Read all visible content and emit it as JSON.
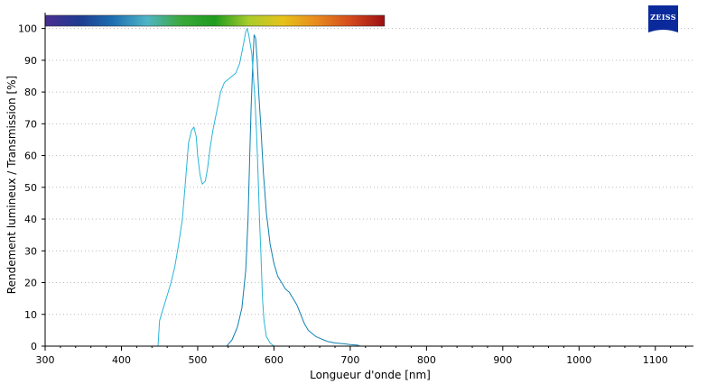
{
  "logo": {
    "text": "ZEISS",
    "color": "#0a2a9c"
  },
  "colors": {
    "series_primary": "#0f7fb2",
    "series_secondary": "#2ab5d8",
    "grid": "#b8b8b8",
    "axis": "#000000",
    "spectrum_stops": [
      "#4a2f91",
      "#1f3b8f",
      "#1c6fb0",
      "#4fb5c7",
      "#3aa83a",
      "#1e9c1e",
      "#a9cc2b",
      "#e6c21a",
      "#e88a1e",
      "#d44a1c",
      "#9c0f12"
    ]
  },
  "chart_data": {
    "type": "line",
    "xlabel": "Longueur d'onde [nm]",
    "ylabel": "Rendement lumineux / Transmission [%]",
    "xlim": [
      300,
      1150
    ],
    "ylim": [
      0,
      105
    ],
    "xticks": [
      "300",
      "400",
      "500",
      "600",
      "700",
      "800",
      "900",
      "1000",
      "1100"
    ],
    "yticks": [
      "0",
      "10",
      "20",
      "30",
      "40",
      "50",
      "60",
      "70",
      "80",
      "90",
      "100"
    ],
    "grid": "horizontal-dotted",
    "spectrum_bar_range": [
      300,
      745
    ],
    "series": [
      {
        "color": "#0f7fb2",
        "x": [
          538,
          545,
          552,
          558,
          563,
          566,
          568,
          570,
          572,
          574,
          576,
          578,
          580,
          583,
          586,
          590,
          595,
          600,
          605,
          610,
          615,
          620,
          625,
          630,
          635,
          640,
          645,
          650,
          655,
          660,
          665,
          670,
          680,
          690,
          700,
          710,
          712
        ],
        "y": [
          0,
          2,
          6,
          12,
          24,
          40,
          58,
          75,
          88,
          98,
          97,
          90,
          80,
          68,
          55,
          42,
          32,
          26,
          22,
          20,
          18,
          17,
          15,
          13,
          10,
          7,
          5,
          4,
          3,
          2.5,
          2,
          1.5,
          1,
          0.8,
          0.5,
          0.3,
          0
        ]
      },
      {
        "color": "#2ab5d8",
        "x": [
          448,
          450,
          455,
          460,
          465,
          470,
          475,
          480,
          485,
          488,
          492,
          495,
          498,
          500,
          503,
          506,
          510,
          513,
          516,
          520,
          525,
          530,
          535,
          540,
          545,
          550,
          555,
          560,
          563,
          565,
          567,
          569,
          571,
          573,
          575,
          577,
          579,
          581,
          583,
          585,
          587,
          590,
          595,
          600
        ],
        "y": [
          0,
          8,
          12,
          16,
          20,
          25,
          32,
          40,
          55,
          64,
          68,
          69,
          66,
          60,
          54,
          51,
          52,
          56,
          62,
          68,
          74,
          80,
          83,
          84,
          85,
          86,
          89,
          95,
          99,
          100,
          98,
          95,
          92,
          85,
          78,
          68,
          55,
          40,
          28,
          15,
          8,
          3,
          1,
          0
        ]
      }
    ]
  }
}
